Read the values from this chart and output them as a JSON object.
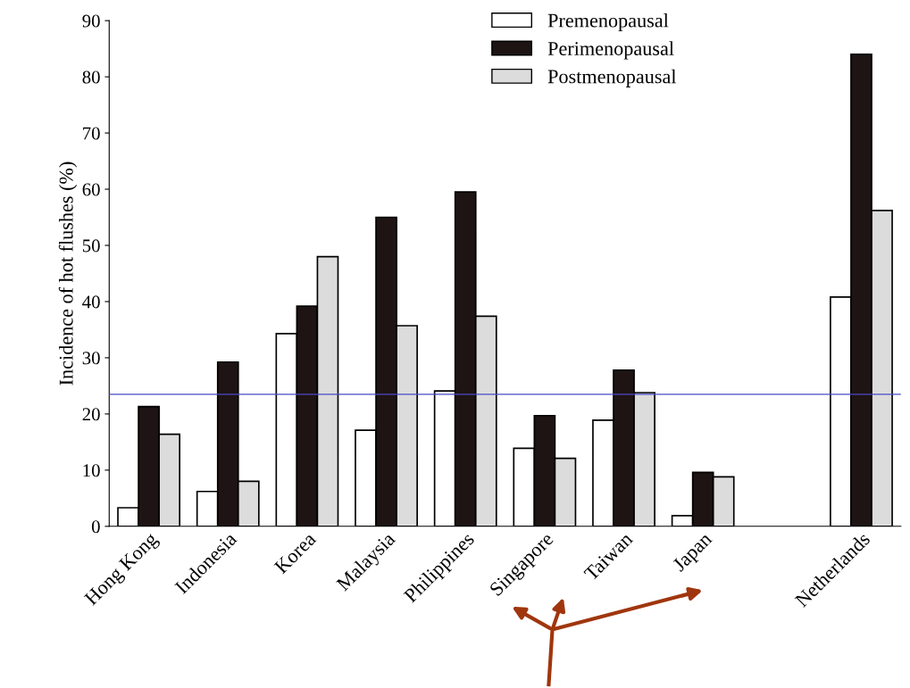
{
  "chart_data": {
    "type": "bar",
    "ylabel": "Incidence of hot flushes (%)",
    "categories": [
      "Hong Kong",
      "Indonesia",
      "Korea",
      "Malaysia",
      "Philippines",
      "Singapore",
      "Taiwan",
      "Japan",
      null,
      "Netherlands"
    ],
    "series": [
      {
        "name": "Premenopausal",
        "color": "#ffffff",
        "values": [
          3.3,
          6.2,
          34.3,
          17.1,
          24.1,
          13.9,
          18.9,
          1.9,
          null,
          40.8
        ]
      },
      {
        "name": "Perimenopausal",
        "color": "#1e1414",
        "values": [
          21.3,
          29.2,
          39.2,
          55.0,
          59.5,
          19.7,
          27.8,
          9.6,
          null,
          84.0
        ]
      },
      {
        "name": "Postmenopausal",
        "color": "#dcdcdc",
        "values": [
          16.4,
          8.0,
          48.0,
          35.7,
          37.4,
          12.1,
          23.8,
          8.8,
          null,
          56.2
        ]
      }
    ],
    "ylim": [
      0,
      90
    ],
    "yticks": [
      0,
      10,
      20,
      30,
      40,
      50,
      60,
      70,
      80,
      90
    ],
    "ref_lines": [
      {
        "axis": "y",
        "value": 23.5,
        "color": "#4a4ac8",
        "line_style": "solid"
      }
    ],
    "grid": false,
    "legend": "top"
  }
}
